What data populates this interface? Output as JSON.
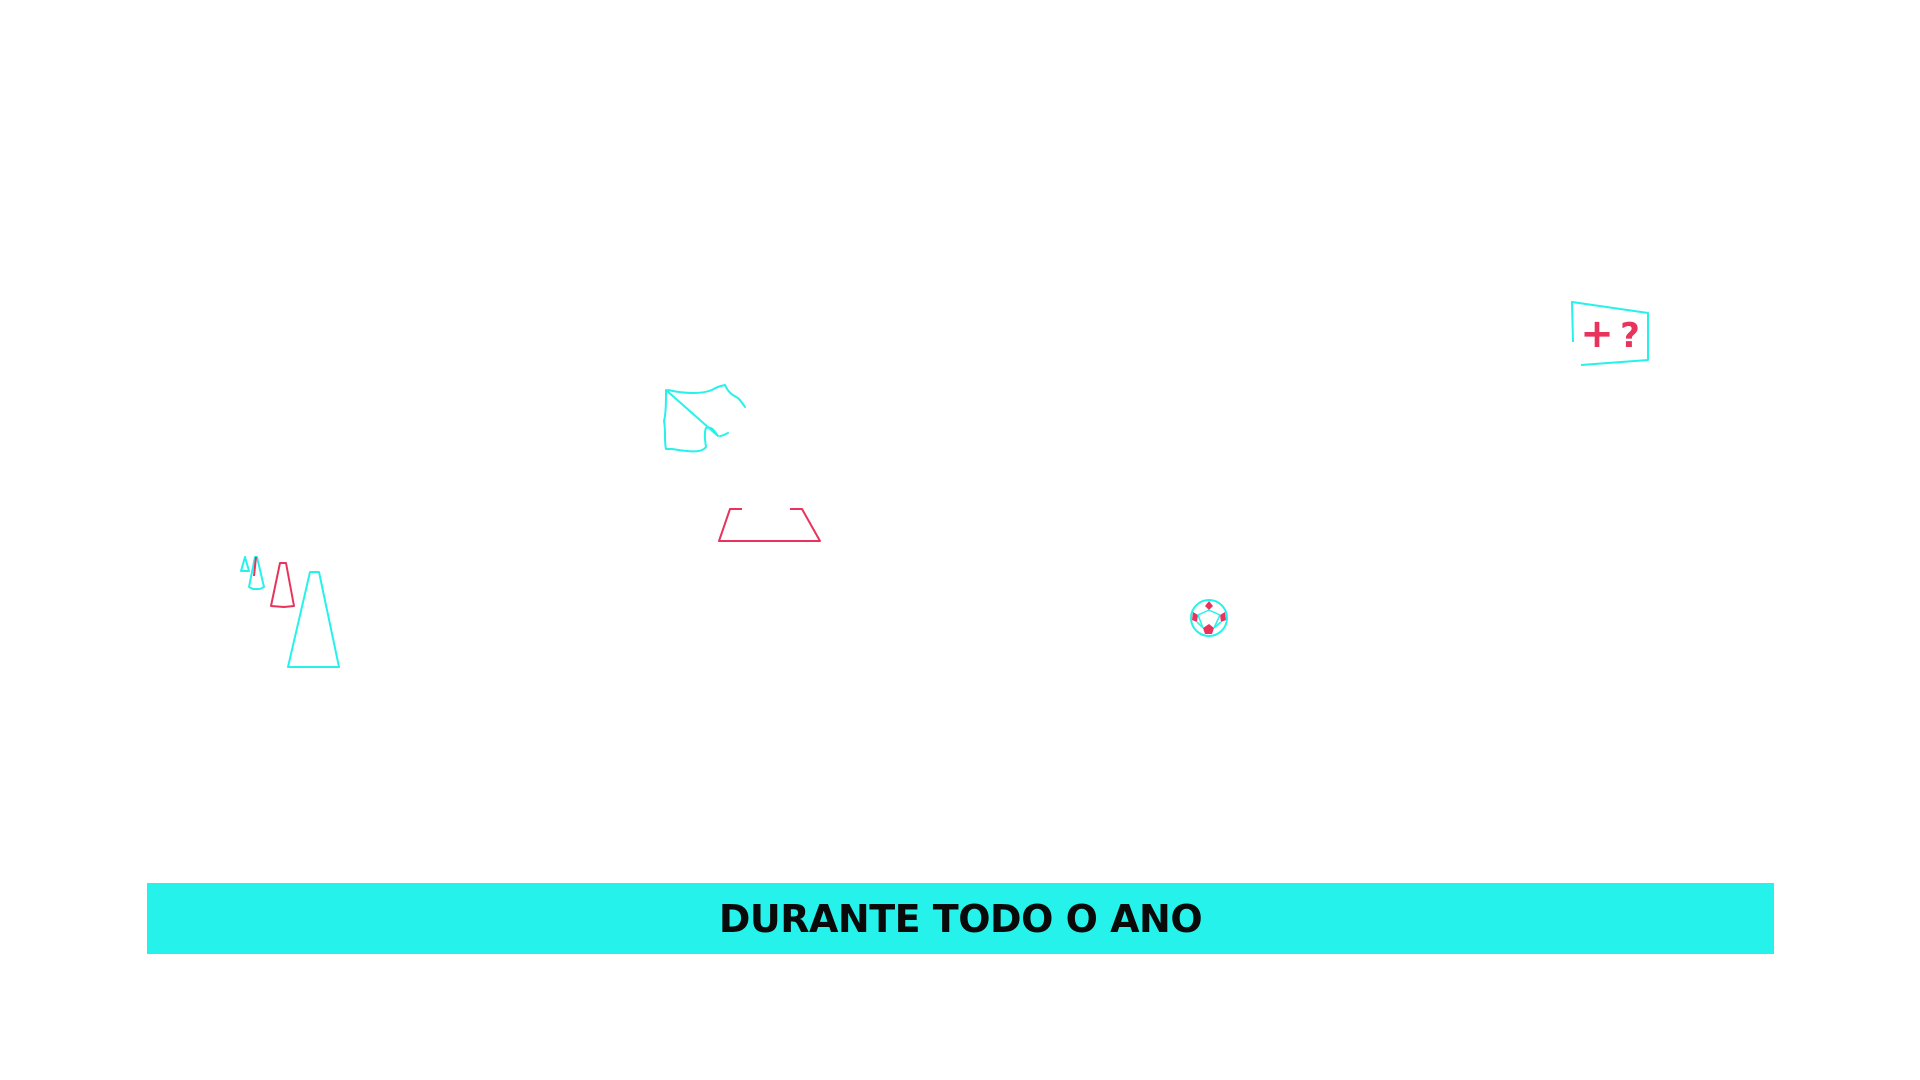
{
  "banner": {
    "text": "DURANTE TODO O ANO",
    "background": "#25F2EA"
  },
  "sign": {
    "symbol_plus": "+",
    "symbol_question": "?"
  },
  "colors": {
    "cyan": "#25F2EA",
    "pink": "#E8345C",
    "text": "#0a0a0a",
    "background": "#ffffff"
  },
  "icons": [
    "cone-icon",
    "shirt-icon",
    "goal-base-icon",
    "soccer-ball-icon",
    "question-sign-icon"
  ]
}
